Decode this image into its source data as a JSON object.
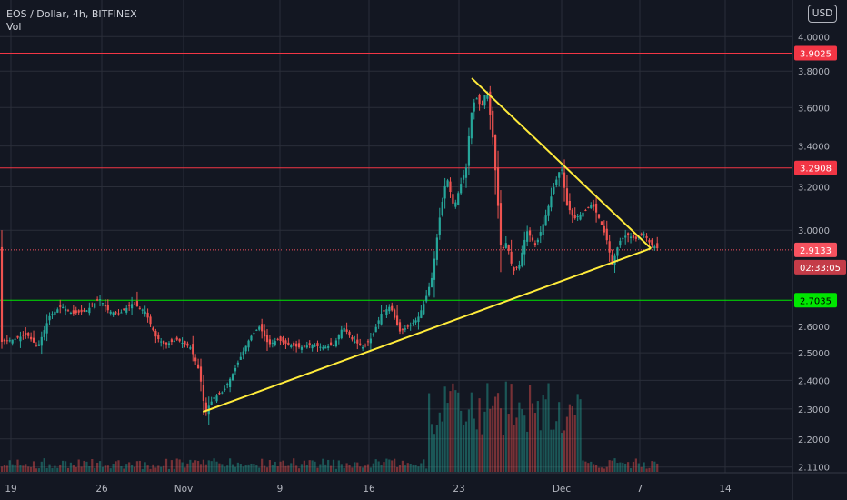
{
  "header": {
    "symbol_line": "EOS / Dollar, 4h, BITFINEX",
    "volume_label": "Vol",
    "currency": "USD"
  },
  "chart_data": {
    "type": "candlestick",
    "title": "EOS / Dollar, 4h, BITFINEX",
    "x_tick_labels": [
      "19",
      "26",
      "Nov",
      "9",
      "16",
      "23",
      "Dec",
      "7",
      "14"
    ],
    "y_tick_labels": [
      "4.0000",
      "3.8000",
      "3.6000",
      "3.4000",
      "3.2000",
      "3.0000",
      "2.6000",
      "2.5000",
      "2.4000",
      "2.3000",
      "2.2000",
      "2.1100"
    ],
    "y_ticks": [
      4.0,
      3.8,
      3.6,
      3.4,
      3.2,
      3.0,
      2.6,
      2.5,
      2.4,
      2.3,
      2.2,
      2.11
    ],
    "y_scale": "log",
    "ylim": [
      2.095,
      4.045
    ],
    "grid": true,
    "horizontal_lines": [
      {
        "value": 3.9025,
        "label": "3.9025",
        "color": "#f23645"
      },
      {
        "value": 3.2908,
        "label": "3.2908",
        "color": "#f23645"
      },
      {
        "value": 2.7035,
        "label": "2.7035",
        "color": "#00e600"
      }
    ],
    "last_price": {
      "value": 2.9133,
      "label": "2.9133",
      "color": "#f7525f"
    },
    "countdown": {
      "label": "02:33:05"
    },
    "price_path": [
      [
        0,
        2.54
      ],
      [
        15,
        2.55
      ],
      [
        30,
        2.57
      ],
      [
        42,
        2.52
      ],
      [
        55,
        2.64
      ],
      [
        68,
        2.68
      ],
      [
        80,
        2.65
      ],
      [
        95,
        2.66
      ],
      [
        110,
        2.71
      ],
      [
        120,
        2.66
      ],
      [
        132,
        2.65
      ],
      [
        146,
        2.69
      ],
      [
        160,
        2.66
      ],
      [
        172,
        2.56
      ],
      [
        182,
        2.53
      ],
      [
        195,
        2.55
      ],
      [
        210,
        2.52
      ],
      [
        220,
        2.43
      ],
      [
        226,
        2.29
      ],
      [
        236,
        2.34
      ],
      [
        246,
        2.36
      ],
      [
        256,
        2.42
      ],
      [
        266,
        2.49
      ],
      [
        276,
        2.56
      ],
      [
        286,
        2.6
      ],
      [
        296,
        2.53
      ],
      [
        306,
        2.55
      ],
      [
        318,
        2.53
      ],
      [
        330,
        2.52
      ],
      [
        342,
        2.53
      ],
      [
        356,
        2.52
      ],
      [
        368,
        2.53
      ],
      [
        378,
        2.6
      ],
      [
        388,
        2.55
      ],
      [
        400,
        2.52
      ],
      [
        410,
        2.56
      ],
      [
        420,
        2.65
      ],
      [
        430,
        2.68
      ],
      [
        440,
        2.58
      ],
      [
        450,
        2.6
      ],
      [
        460,
        2.63
      ],
      [
        468,
        2.7
      ],
      [
        476,
        2.8
      ],
      [
        484,
        3.05
      ],
      [
        492,
        3.25
      ],
      [
        500,
        3.1
      ],
      [
        508,
        3.22
      ],
      [
        514,
        3.3
      ],
      [
        518,
        3.55
      ],
      [
        524,
        3.66
      ],
      [
        530,
        3.6
      ],
      [
        536,
        3.7
      ],
      [
        542,
        3.48
      ],
      [
        547,
        3.2
      ],
      [
        552,
        2.9
      ],
      [
        558,
        2.95
      ],
      [
        565,
        2.82
      ],
      [
        572,
        2.85
      ],
      [
        580,
        3.0
      ],
      [
        590,
        2.93
      ],
      [
        600,
        3.05
      ],
      [
        610,
        3.2
      ],
      [
        618,
        3.3
      ],
      [
        624,
        3.12
      ],
      [
        632,
        3.05
      ],
      [
        642,
        3.08
      ],
      [
        652,
        3.12
      ],
      [
        660,
        3.05
      ],
      [
        668,
        2.96
      ],
      [
        674,
        2.85
      ],
      [
        682,
        2.95
      ],
      [
        690,
        2.98
      ],
      [
        700,
        2.96
      ],
      [
        708,
        2.99
      ],
      [
        716,
        2.94
      ],
      [
        724,
        2.92
      ]
    ],
    "drawings": [
      {
        "type": "trendline",
        "from": {
          "date": "Nov 3",
          "price": 2.29
        },
        "to": {
          "date": "Dec 8",
          "price": 2.92
        },
        "color": "#ffeb3b"
      },
      {
        "type": "trendline",
        "from": {
          "date": "Nov 24",
          "price": 3.76
        },
        "to": {
          "date": "Dec 8",
          "price": 2.92
        },
        "color": "#ffeb3b"
      }
    ],
    "colors": {
      "up": "#26a69a",
      "down": "#ef5350",
      "background": "#131722",
      "grid": "#2a2e39",
      "text": "#b2b5be"
    }
  }
}
